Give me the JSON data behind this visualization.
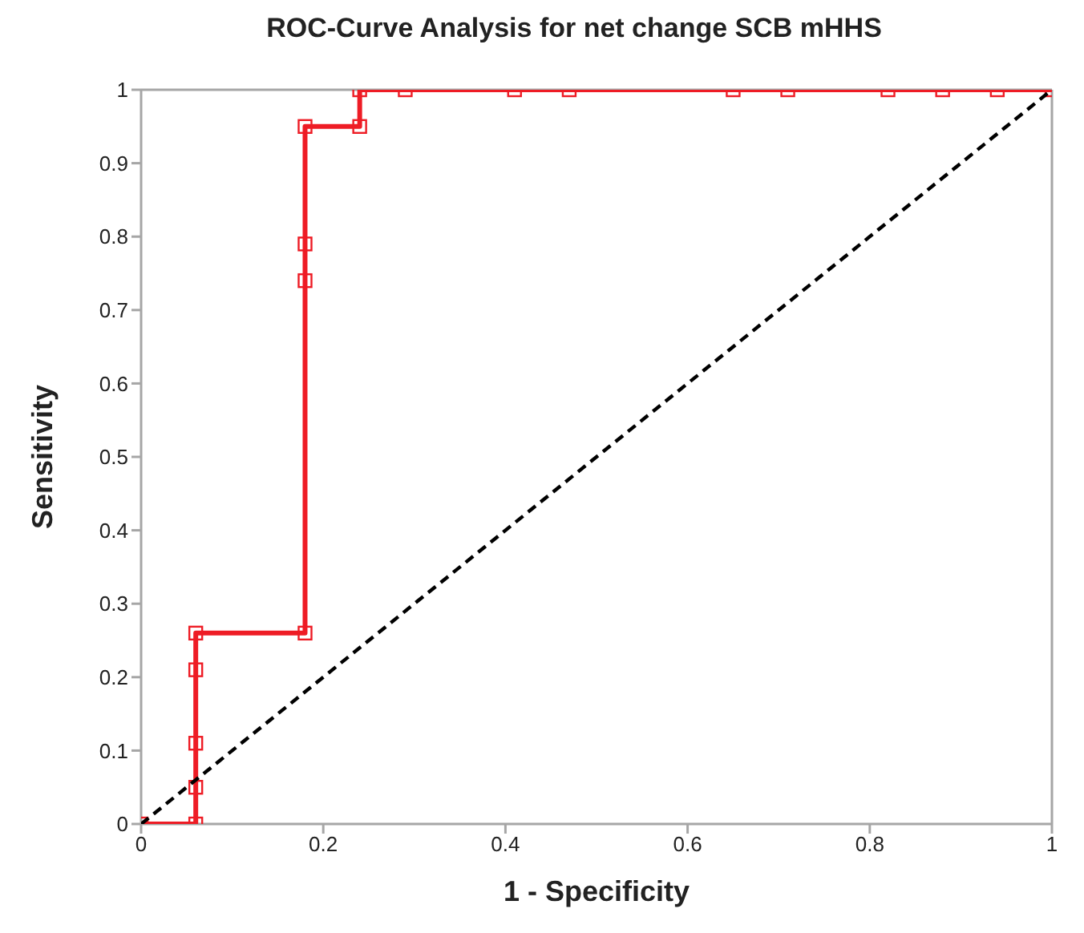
{
  "chart_data": {
    "type": "line",
    "title": "ROC-Curve Analysis for net change SCB mHHS",
    "xlabel": "1 - Specificity",
    "ylabel": "Sensitivity",
    "xlim": [
      0,
      1
    ],
    "ylim": [
      0,
      1
    ],
    "xticks": [
      0,
      0.2,
      0.4,
      0.6,
      0.8,
      1
    ],
    "yticks": [
      0,
      0.1,
      0.2,
      0.3,
      0.4,
      0.5,
      0.6,
      0.7,
      0.8,
      0.9,
      1
    ],
    "grid": false,
    "legend": false,
    "series": [
      {
        "color": "#ee1c25",
        "marker": "square",
        "line_style": "solid",
        "x": [
          0,
          0.06,
          0.06,
          0.06,
          0.06,
          0.06,
          0.18,
          0.18,
          0.18,
          0.18,
          0.24,
          0.24,
          0.29,
          0.41,
          0.47,
          0.65,
          0.71,
          0.82,
          0.88,
          0.94,
          1
        ],
        "values": [
          0,
          0,
          0.05,
          0.11,
          0.21,
          0.26,
          0.26,
          0.74,
          0.79,
          0.95,
          0.95,
          1,
          1,
          1,
          1,
          1,
          1,
          1,
          1,
          1,
          1
        ]
      },
      {
        "color": "#000000",
        "marker": "none",
        "line_style": "dashed",
        "x": [
          0,
          1
        ],
        "values": [
          0,
          1
        ]
      }
    ]
  }
}
